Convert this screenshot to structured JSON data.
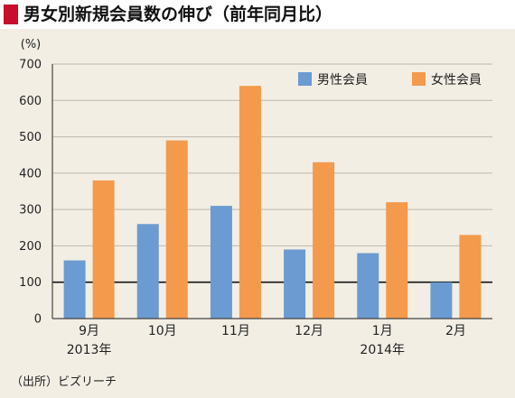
{
  "title": "男女別新規会員数の伸び（前年同月比）",
  "source": "（出所）ビズリーチ",
  "colors": {
    "title_marker": "#c8102e",
    "panel_background": "#f2eee4",
    "male": "#6b9bd1",
    "female": "#f39a4d"
  },
  "chart_data": {
    "type": "bar",
    "unit_label": "(%)",
    "categories": [
      "9月",
      "10月",
      "11月",
      "12月",
      "1月",
      "2月"
    ],
    "year_labels": [
      {
        "category_index": 0,
        "text": "2013年"
      },
      {
        "category_index": 4,
        "text": "2014年"
      }
    ],
    "series": [
      {
        "name": "男性会員",
        "values": [
          160,
          260,
          310,
          190,
          180,
          100
        ]
      },
      {
        "name": "女性会員",
        "values": [
          380,
          490,
          640,
          430,
          320,
          230
        ]
      }
    ],
    "ylim": [
      0,
      700
    ],
    "yticks": [
      0,
      100,
      200,
      300,
      400,
      500,
      600,
      700
    ],
    "grid": true,
    "reference_line": 100,
    "legend_position": "top-right"
  }
}
